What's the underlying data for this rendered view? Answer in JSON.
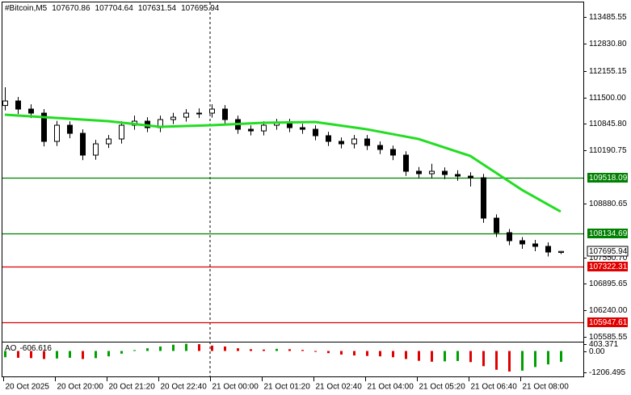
{
  "chart_data": [
    {
      "type": "candlestick",
      "title": "#Bitcoin,M5",
      "categories": [
        "20 Oct 2025",
        null,
        null,
        null,
        "20 Oct 20:00",
        null,
        null,
        null,
        "20 Oct 21:20",
        null,
        null,
        null,
        "20 Oct 22:40",
        null,
        null,
        null,
        "21 Oct 00:00",
        null,
        null,
        null,
        "21 Oct 01:20",
        null,
        null,
        null,
        "21 Oct 02:40",
        null,
        null,
        null,
        "21 Oct 04:00",
        null,
        null,
        null,
        "21 Oct 05:20",
        null,
        null,
        null,
        "21 Oct 06:40",
        null,
        null,
        null,
        "21 Oct 08:00",
        null,
        null,
        null
      ],
      "open": [
        111300,
        111411,
        111211,
        111111,
        110413,
        110812,
        110612,
        110074,
        110353,
        110473,
        110812,
        110912,
        110752,
        110952,
        111011,
        111111,
        111111,
        111211,
        110952,
        110712,
        110672,
        110812,
        110872,
        110752,
        110712,
        110553,
        110413,
        110353,
        110473,
        110313,
        110214,
        110074,
        109675,
        109615,
        109675,
        109595,
        109555,
        109515,
        108518,
        108159,
        107960,
        107880,
        107820,
        107670.86
      ],
      "high": [
        111750,
        111510,
        111330,
        111210,
        110920,
        110910,
        110710,
        110450,
        110570,
        110910,
        111050,
        111010,
        111050,
        111120,
        111210,
        111230,
        111330,
        111310,
        111050,
        110810,
        110910,
        110970,
        110970,
        110850,
        110810,
        110650,
        110510,
        110570,
        110570,
        110410,
        110310,
        110170,
        109780,
        109860,
        109770,
        109700,
        109650,
        109610,
        108610,
        108250,
        108050,
        107980,
        107920,
        107704.64
      ],
      "low": [
        111180,
        111090,
        110990,
        110290,
        110300,
        110490,
        109950,
        109960,
        110250,
        110360,
        110700,
        110640,
        110640,
        110840,
        110900,
        110990,
        111000,
        110840,
        110600,
        110560,
        110560,
        110700,
        110640,
        110600,
        110440,
        110300,
        110240,
        110240,
        110200,
        110100,
        109950,
        109560,
        109500,
        109500,
        109480,
        109440,
        109300,
        108400,
        108050,
        107850,
        107760,
        107700,
        107570,
        107631.54
      ],
      "close": [
        111411,
        111211,
        111111,
        110413,
        110812,
        110612,
        110074,
        110353,
        110473,
        110812,
        110912,
        110752,
        110952,
        111011,
        111111,
        111111,
        111211,
        110952,
        110712,
        110672,
        110812,
        110872,
        110752,
        110712,
        110553,
        110413,
        110353,
        110473,
        110313,
        110214,
        110074,
        109675,
        109615,
        109675,
        109595,
        109555,
        109515,
        108518,
        108159,
        107960,
        107880,
        107820,
        107680,
        107695.94
      ],
      "up_color": "#ffffff",
      "down_color": "#000000",
      "ma": {
        "color": "#22dd22",
        "values": [
          111072,
          111052,
          111032,
          111012,
          110992,
          110972,
          110952,
          110932,
          110912,
          110877,
          110842,
          110807,
          110772,
          110782,
          110792,
          110802,
          110812,
          110827,
          110842,
          110857,
          110872,
          110877,
          110882,
          110887,
          110892,
          110847,
          110802,
          110757,
          110712,
          110652,
          110592,
          110532,
          110473,
          110368,
          110263,
          110158,
          110054,
          109844,
          109635,
          109425,
          109216,
          109037,
          108857,
          108678
        ]
      },
      "levels": [
        {
          "value": 109518.09,
          "color": "#008000"
        },
        {
          "value": 108134.69,
          "color": "#008000"
        },
        {
          "value": 107322.31,
          "color": "#e00000"
        },
        {
          "value": 105947.61,
          "color": "#e00000"
        }
      ],
      "ylim": [
        105466,
        113905
      ],
      "yticks": [
        113485.55,
        {
          "value": 112830.8,
          "label": "112830.80"
        },
        112155.15,
        {
          "value": 111500,
          "label": "111500.00"
        },
        {
          "value": 110845.8,
          "label": "110845.80"
        },
        110190.75,
        108880.65,
        {
          "value": 107550.7,
          "label": "107550.70"
        },
        106895.65,
        {
          "value": 106240,
          "label": "106240.00"
        },
        105585.55
      ]
    },
    {
      "type": "histogram",
      "title": "AO",
      "values": [
        -350,
        -380,
        -400,
        -450,
        -420,
        -380,
        -450,
        -400,
        -300,
        -150,
        50,
        150,
        250,
        350,
        400,
        380,
        300,
        250,
        150,
        100,
        80,
        120,
        100,
        60,
        -50,
        -120,
        -200,
        -250,
        -280,
        -300,
        -350,
        -450,
        -550,
        -600,
        -580,
        -560,
        -620,
        -850,
        -1050,
        -1150,
        -1100,
        -900,
        -750,
        -606.616
      ],
      "up_color": "#00a000",
      "down_color": "#e00000",
      "ylim": [
        -1422,
        474
      ],
      "yticks": [
        403.371,
        {
          "value": 0,
          "label": "0.00"
        },
        -1206.495
      ]
    }
  ]
}
